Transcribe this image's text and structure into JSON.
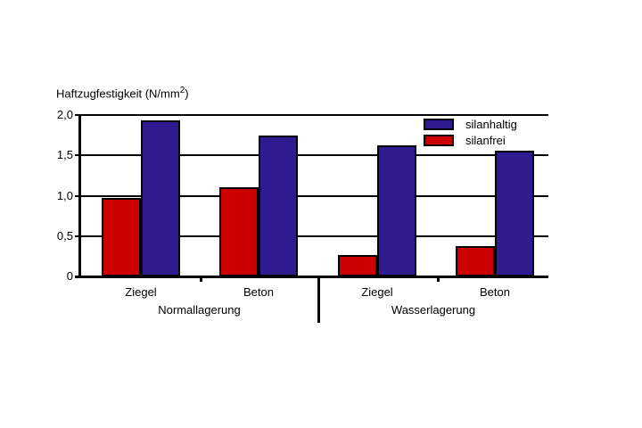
{
  "chart_data": {
    "type": "bar",
    "title": "Haftzugfestigkeit (N/mm²)",
    "title_parts": {
      "prefix": "Haftzugfestigkeit (N/mm",
      "sup": "2",
      "suffix": ")"
    },
    "ylabel": "Haftzugfestigkeit (N/mm²)",
    "xlabel": "",
    "ylim": [
      0,
      2.0
    ],
    "grid": true,
    "decimal_separator": ",",
    "y_ticks": [
      {
        "value": 0,
        "label": "0"
      },
      {
        "value": 0.5,
        "label": "0,5"
      },
      {
        "value": 1.0,
        "label": "1,0"
      },
      {
        "value": 1.5,
        "label": "1,5"
      },
      {
        "value": 2.0,
        "label": "2,0"
      }
    ],
    "categories": [
      "Ziegel",
      "Beton",
      "Ziegel",
      "Beton"
    ],
    "groups": [
      {
        "label": "Normallagerung",
        "categories": [
          "Ziegel",
          "Beton"
        ]
      },
      {
        "label": "Wasserlagerung",
        "categories": [
          "Ziegel",
          "Beton"
        ]
      }
    ],
    "series": [
      {
        "name": "silanfrei",
        "color": "#cc0000",
        "values": [
          0.97,
          1.1,
          0.26,
          0.38
        ]
      },
      {
        "name": "silanhaltig",
        "color": "#2f1a8f",
        "values": [
          1.93,
          1.75,
          1.62,
          1.56
        ]
      }
    ],
    "legend": {
      "position": "top-right",
      "entries": [
        {
          "label": "silanhaltig",
          "color": "#2f1a8f"
        },
        {
          "label": "silanfrei",
          "color": "#cc0000"
        }
      ]
    },
    "colors": {
      "axis": "#000000",
      "text": "#000000",
      "background": "#ffffff"
    }
  }
}
